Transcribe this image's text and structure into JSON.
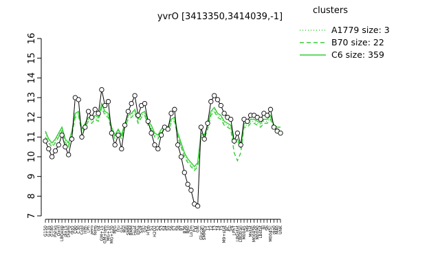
{
  "chart_data": {
    "type": "line",
    "title": "yvrO [3413350,3414039,-1]",
    "ylim": [
      7,
      16
    ],
    "yticks": [
      7,
      8,
      9,
      10,
      11,
      12,
      13,
      14,
      15,
      16
    ],
    "grid": false,
    "legend_placement": "top-right",
    "legend": {
      "title": "clusters",
      "entries": [
        {
          "label": "A1779 size: 3",
          "style": "dotted",
          "color": "#33cc33"
        },
        {
          "label": "B70 size: 22",
          "style": "dashed",
          "color": "#33cc33"
        },
        {
          "label": "C6 size: 359",
          "style": "solid",
          "color": "#33cc33"
        }
      ]
    },
    "categories": [
      "G150",
      "G135",
      "G180",
      "Paraq",
      "Oxctl",
      "LBGexp",
      "dia15",
      "Diami",
      "dia5",
      "C90",
      "C30",
      "Cold",
      "HPh",
      "LPh",
      "aero",
      "ferm",
      "nit",
      "GM+15",
      "GM+Iam",
      "MG+10",
      "MG+120",
      "M/G",
      "Fru",
      "Glu",
      "Mal",
      "SMM",
      "BMM",
      "Heat",
      "Etha",
      "Salt",
      "Gly",
      "HTm",
      "S1",
      "H2O2",
      "S2",
      "S3",
      "S4",
      "S5",
      "S6",
      "S7",
      "S8",
      "BT",
      "B36",
      "B60",
      "LoTm",
      "Pyr",
      "Gl6",
      "Glucon",
      "SMMPy",
      "T1",
      "T2",
      "T3",
      "T4",
      "T5",
      "M9+stat",
      "BC",
      "Sw",
      "LPhT",
      "LBGstat",
      "LBGtran",
      "M0045",
      "M9",
      "Mstat",
      "M0045b",
      "M0090",
      "Lbstat",
      "BI",
      "Sb",
      "M0045c",
      "dia0",
      "M40",
      "UNK"
    ],
    "visible_x_labels": [
      "G150",
      "G135",
      "G180",
      "Paraq",
      "Oxctl",
      "LBGexp",
      "dia15",
      "Diami",
      "dia5",
      "C90",
      "C30",
      "Cold",
      "HPh",
      "LPh",
      "aero",
      "ferm",
      "nit",
      "GM+15",
      "GM+Iam",
      "MG+10",
      "MG+120",
      "M/G",
      "Fru",
      "Glu",
      "Mal",
      "SMM",
      "BMM",
      "Heat",
      "Etha",
      "Salt",
      "Gly",
      "HTm",
      "S1",
      "H2O2",
      "S2",
      "S3",
      "S4",
      "S5",
      "S6",
      "S7",
      "S8",
      "BT",
      "B36",
      "B60",
      "LoTm",
      "Pyr",
      "Gl6",
      "Glucon",
      "SMMPy",
      "T1",
      "T2",
      "T3",
      "T4",
      "T5",
      "M9+stat",
      "BC",
      "Sw",
      "LPhT",
      "LBGstat",
      "LBGtran",
      "M0045",
      "M9",
      "Mstat",
      "M0045b",
      "M0090",
      "Lbstat",
      "BI",
      "Sb",
      "M0045c",
      "dia0",
      "M40",
      "UNK"
    ],
    "series": [
      {
        "name": "",
        "role": "gene profile",
        "color": "#000000",
        "marker": "open-circle",
        "values": [
          10.8,
          10.4,
          10.0,
          10.3,
          10.6,
          11.1,
          10.5,
          10.1,
          10.9,
          13.0,
          12.9,
          11.0,
          11.5,
          12.3,
          12.0,
          12.4,
          12.2,
          13.4,
          12.6,
          12.8,
          11.2,
          10.6,
          11.1,
          10.4,
          11.6,
          12.3,
          12.7,
          13.1,
          12.1,
          12.6,
          12.7,
          11.8,
          11.2,
          10.6,
          10.4,
          11.1,
          11.5,
          11.4,
          12.2,
          12.4,
          10.6,
          10.0,
          9.2,
          8.6,
          8.3,
          7.6,
          7.5,
          11.5,
          10.9,
          11.7,
          12.8,
          13.1,
          12.9,
          12.6,
          12.2,
          12.0,
          11.9,
          10.8,
          11.2,
          10.6,
          11.9,
          11.8,
          12.1,
          12.1,
          12.0,
          11.9,
          12.2,
          12.1,
          12.4,
          11.5,
          11.3,
          11.2
        ]
      },
      {
        "name": "A1779 size: 3",
        "style": "dotted",
        "values": [
          11.2,
          10.8,
          10.6,
          10.8,
          11.1,
          11.4,
          10.8,
          10.6,
          11.2,
          12.1,
          12.2,
          11.3,
          11.6,
          11.9,
          11.8,
          12.0,
          11.9,
          12.6,
          12.2,
          12.1,
          11.4,
          11.0,
          11.3,
          11.0,
          11.6,
          12.0,
          12.1,
          12.3,
          11.8,
          12.1,
          12.2,
          11.7,
          11.5,
          11.1,
          11.0,
          11.3,
          11.5,
          11.4,
          11.8,
          11.9,
          11.1,
          10.6,
          10.1,
          9.8,
          9.6,
          9.4,
          9.6,
          11.1,
          11.0,
          11.5,
          12.2,
          12.4,
          12.1,
          12.0,
          11.7,
          11.6,
          11.5,
          10.6,
          10.8,
          10.4,
          11.6,
          11.6,
          11.8,
          11.8,
          11.7,
          11.6,
          11.8,
          11.8,
          12.0,
          11.5,
          11.4,
          11.4
        ]
      },
      {
        "name": "B70 size: 22",
        "style": "dashed",
        "values": [
          11.0,
          10.7,
          10.5,
          10.7,
          11.0,
          11.3,
          10.7,
          10.5,
          11.1,
          12.0,
          12.1,
          11.2,
          11.5,
          11.8,
          11.7,
          11.9,
          11.8,
          12.5,
          12.1,
          12.0,
          11.3,
          10.9,
          11.2,
          10.9,
          11.5,
          11.9,
          12.0,
          12.2,
          11.7,
          12.0,
          12.1,
          11.6,
          11.4,
          11.0,
          10.9,
          11.2,
          11.4,
          11.3,
          11.7,
          11.8,
          11.0,
          10.5,
          10.0,
          9.7,
          9.5,
          9.3,
          9.5,
          11.0,
          10.9,
          11.4,
          12.1,
          12.3,
          12.0,
          11.9,
          11.6,
          11.5,
          11.4,
          10.2,
          9.8,
          10.2,
          11.5,
          11.5,
          11.7,
          11.7,
          11.6,
          11.5,
          11.7,
          11.7,
          11.9,
          11.4,
          11.3,
          11.3
        ]
      },
      {
        "name": "C6 size: 359",
        "style": "solid",
        "values": [
          11.3,
          10.9,
          10.7,
          10.9,
          11.2,
          11.5,
          10.9,
          10.7,
          11.3,
          12.2,
          12.3,
          11.4,
          11.7,
          12.0,
          11.9,
          12.1,
          12.0,
          12.7,
          12.3,
          12.2,
          11.5,
          11.1,
          11.4,
          11.1,
          11.7,
          12.1,
          12.2,
          12.4,
          11.9,
          12.2,
          12.3,
          11.8,
          11.6,
          11.2,
          11.1,
          11.4,
          11.6,
          11.5,
          11.9,
          12.0,
          11.2,
          10.7,
          10.2,
          9.9,
          9.7,
          9.5,
          9.7,
          11.2,
          11.1,
          11.6,
          12.3,
          12.5,
          12.2,
          12.1,
          11.8,
          11.7,
          11.6,
          10.7,
          10.9,
          10.5,
          11.7,
          11.7,
          11.9,
          11.9,
          11.8,
          11.7,
          11.9,
          11.9,
          12.1,
          11.6,
          11.5,
          11.5
        ]
      }
    ]
  }
}
